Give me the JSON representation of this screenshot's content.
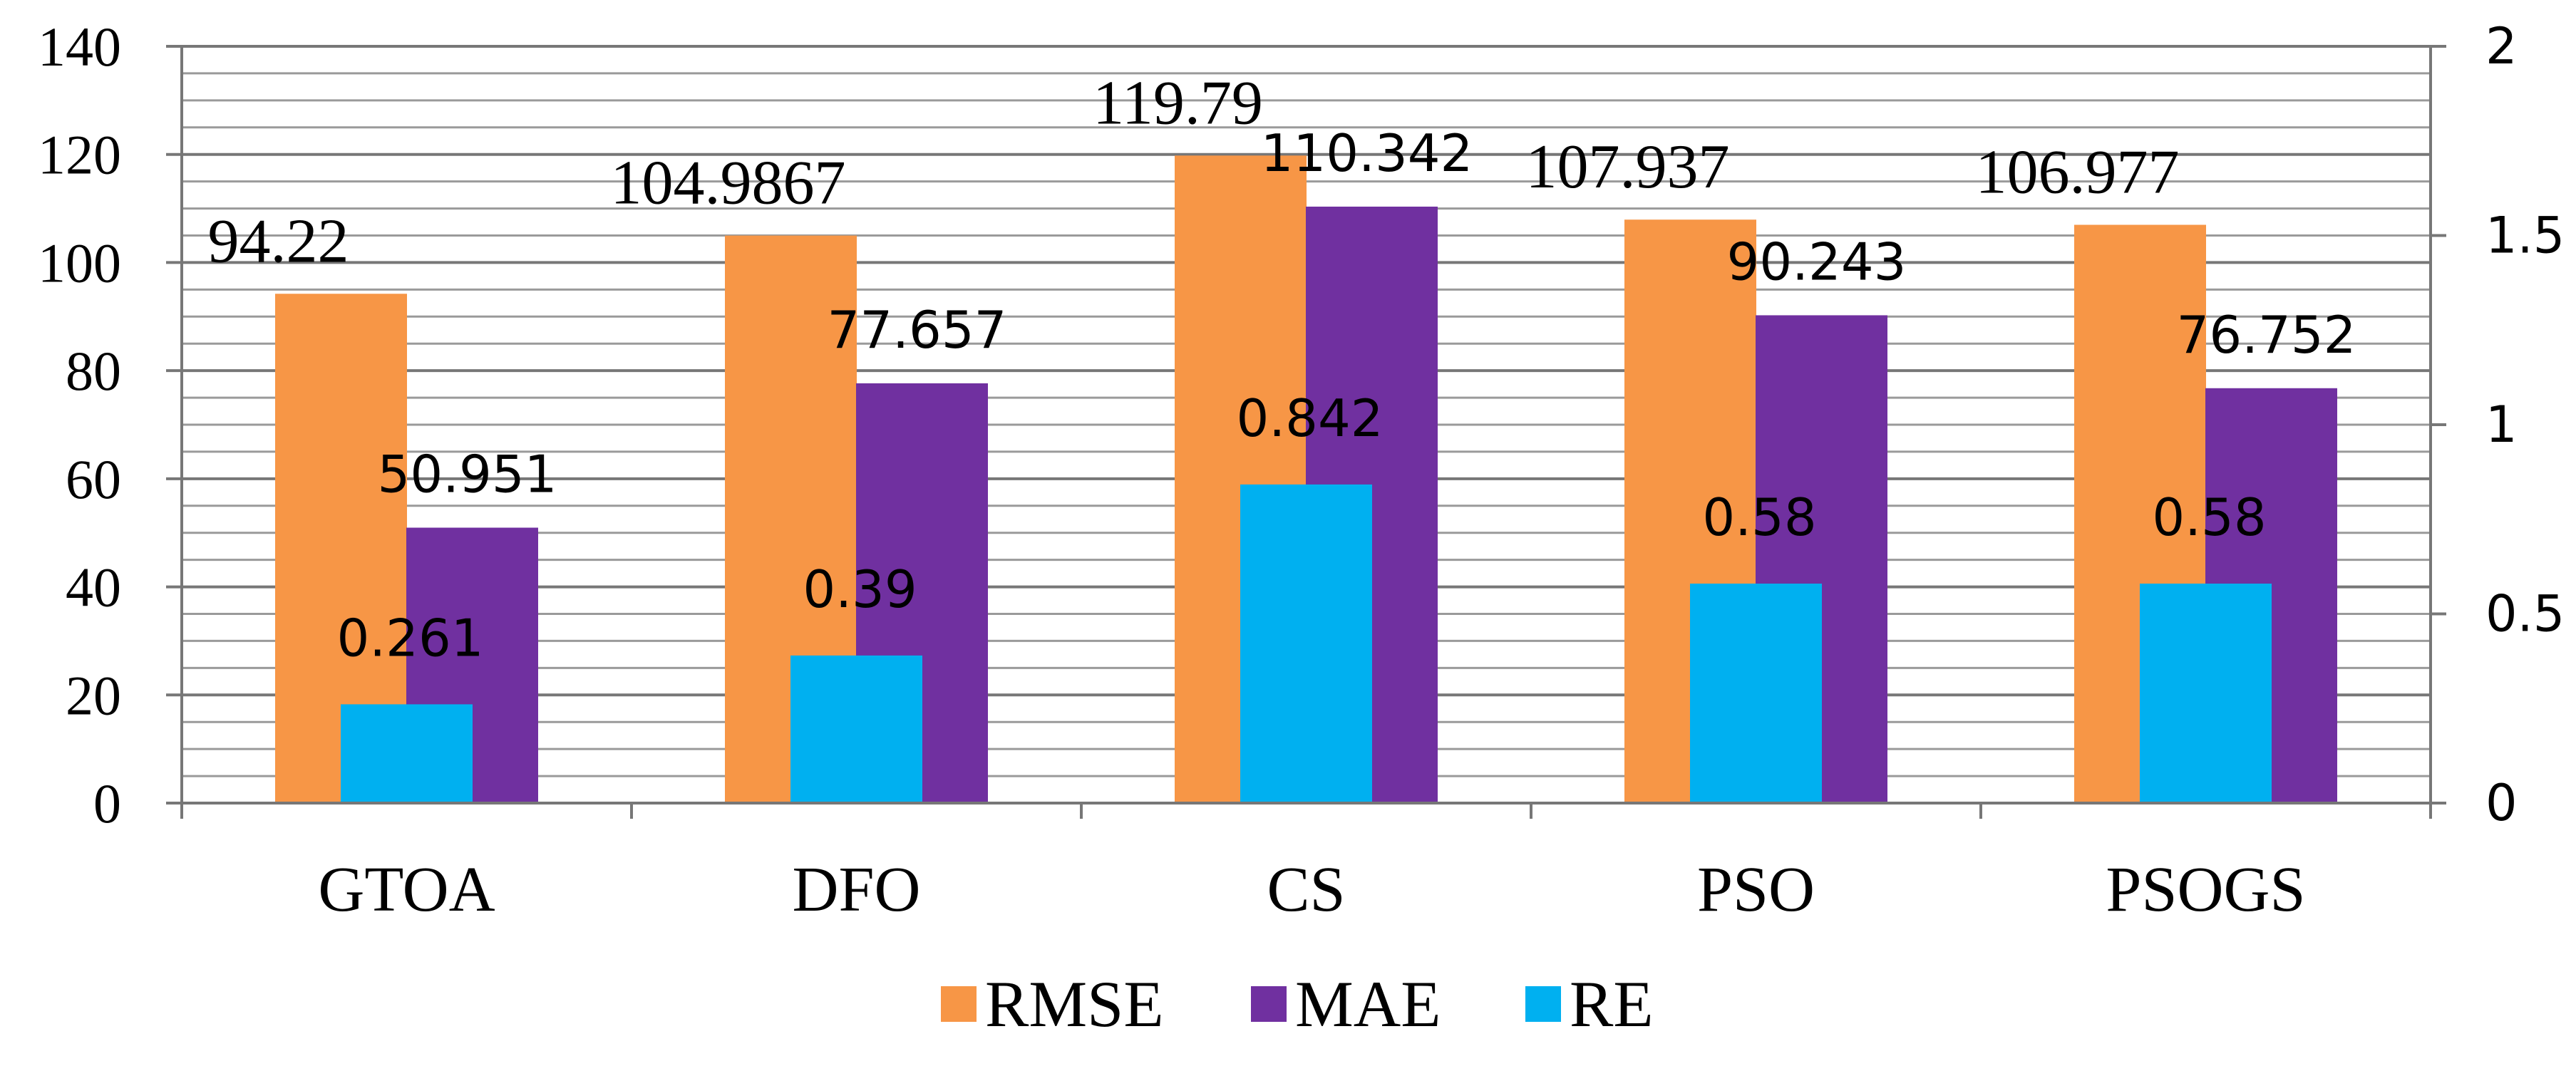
{
  "chart_data": {
    "type": "bar",
    "categories": [
      "GTOA",
      "DFO",
      "CS",
      "PSO",
      "PSOGS"
    ],
    "series": [
      {
        "name": "RMSE",
        "axis": "left",
        "values": [
          94.22,
          104.9867,
          119.79,
          107.937,
          106.977
        ],
        "labels": [
          "94.22",
          "104.9867",
          "119.79",
          "107.937",
          "106.977"
        ]
      },
      {
        "name": "MAE",
        "axis": "left",
        "values": [
          50.951,
          77.657,
          110.342,
          90.243,
          76.752
        ],
        "labels": [
          "50.951",
          "77.657",
          "110.342",
          "90.243",
          "76.752"
        ]
      },
      {
        "name": "RE",
        "axis": "right",
        "values": [
          0.261,
          0.39,
          0.842,
          0.58,
          0.58
        ],
        "labels": [
          "0.261",
          "0.39",
          "0.842",
          "0.58",
          "0.58"
        ]
      }
    ],
    "y_left": {
      "min": 0,
      "max": 140,
      "ticks": [
        "0",
        "20",
        "40",
        "60",
        "80",
        "100",
        "120",
        "140"
      ]
    },
    "y_right": {
      "min": 0,
      "max": 2,
      "ticks": [
        "0",
        "0.5",
        "1",
        "1.5",
        "2"
      ]
    },
    "grid": true,
    "legend_position": "bottom",
    "colors": {
      "RMSE": "#F79646",
      "MAE": "#7030A0",
      "RE": "#00B0F0"
    }
  }
}
